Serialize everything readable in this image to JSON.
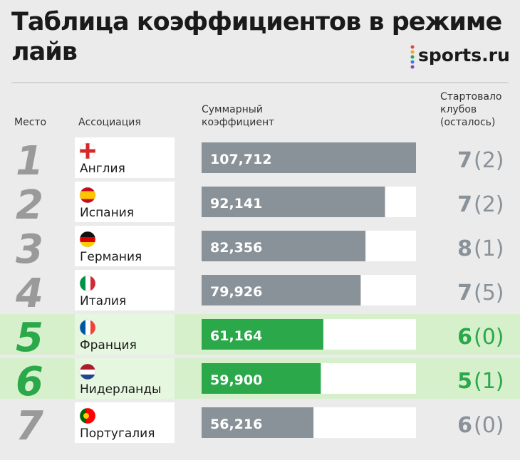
{
  "header": {
    "title_lines": [
      "Таблица коэффициентов в режиме",
      "лайв"
    ],
    "logo": "sports.ru"
  },
  "table": {
    "columns": {
      "place": "Место",
      "association": "Ассоциация",
      "coefficient": [
        "Суммарный",
        "коэффициент"
      ],
      "clubs": [
        "Стартовало",
        "клубов",
        "(осталось)"
      ]
    },
    "rows": [
      {
        "place": "1",
        "association": "Англия",
        "coefficient": 107.712,
        "coefficient_label": "107,712",
        "started": "7",
        "remaining": "(2)",
        "highlighted": false
      },
      {
        "place": "2",
        "association": "Испания",
        "coefficient": 92.141,
        "coefficient_label": "92,141",
        "started": "7",
        "remaining": "(2)",
        "highlighted": false
      },
      {
        "place": "3",
        "association": "Германия",
        "coefficient": 82.356,
        "coefficient_label": "82,356",
        "started": "8",
        "remaining": "(1)",
        "highlighted": false
      },
      {
        "place": "4",
        "association": "Италия",
        "coefficient": 79.926,
        "coefficient_label": "79,926",
        "started": "7",
        "remaining": "(5)",
        "highlighted": false
      },
      {
        "place": "5",
        "association": "Франция",
        "coefficient": 61.164,
        "coefficient_label": "61,164",
        "started": "6",
        "remaining": "(0)",
        "highlighted": true
      },
      {
        "place": "6",
        "association": "Нидерланды",
        "coefficient": 59.9,
        "coefficient_label": "59,900",
        "started": "5",
        "remaining": "(1)",
        "highlighted": true
      },
      {
        "place": "7",
        "association": "Португалия",
        "coefficient": 56.216,
        "coefficient_label": "56,216",
        "started": "6",
        "remaining": "(0)",
        "highlighted": false
      }
    ]
  }
}
